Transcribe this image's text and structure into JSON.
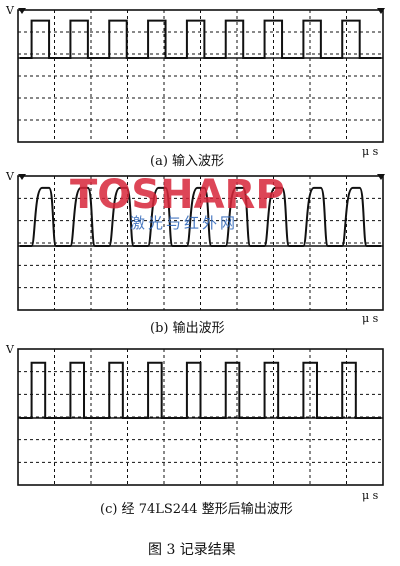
{
  "panels": [
    {
      "id": "a",
      "y_label": "V",
      "unit_label": "μ s",
      "caption": "(a) 输入波形",
      "wave": {
        "type": "square",
        "pulses": 9,
        "duty": 0.45,
        "high": 0.85,
        "low": 0.0
      }
    },
    {
      "id": "b",
      "y_label": "V",
      "unit_label": "μ s",
      "caption": "(b) 输出波形",
      "wave": {
        "type": "rounded",
        "pulses": 9,
        "duty": 0.6,
        "high": 0.88,
        "low": 0.0
      }
    },
    {
      "id": "c",
      "y_label": "V",
      "unit_label": "μ s",
      "caption": "(c) 经 74LS244 整形后输出波形",
      "wave": {
        "type": "narrow",
        "pulses": 9,
        "duty": 0.35,
        "high": 0.85,
        "low": 0.0
      }
    }
  ],
  "watermark": {
    "brand": "TOSHARP",
    "subtitle": "激光与红外网"
  },
  "figure_caption": "图 3  记录结果",
  "colors": {
    "ink": "#111111",
    "wm_red": "#d8263a",
    "wm_blue": "#2a63b8"
  }
}
